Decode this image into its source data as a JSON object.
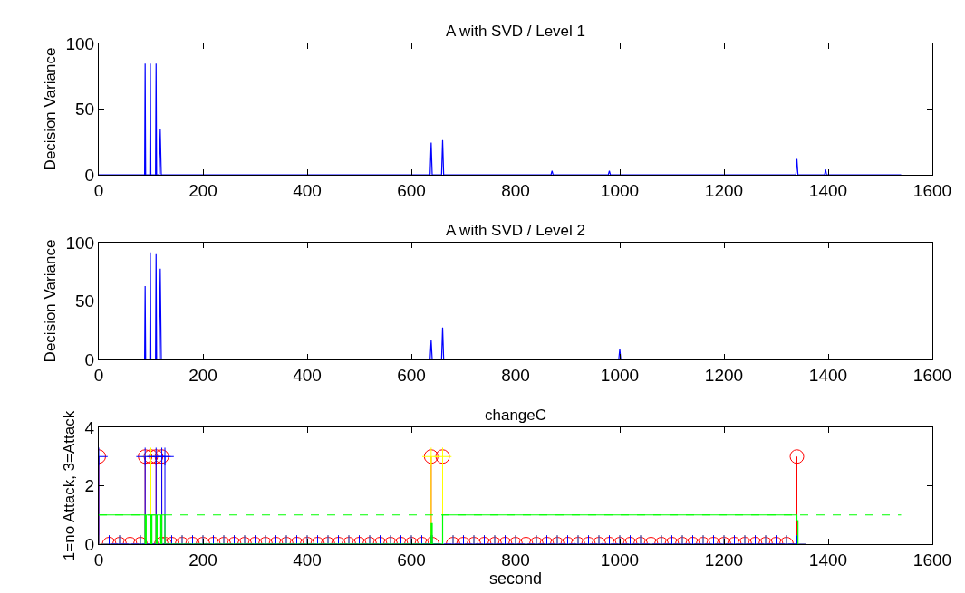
{
  "chart_data": [
    {
      "type": "line",
      "title": "A with SVD / Level 1",
      "ylabel": "Decision Variance",
      "xlim": [
        0,
        1600
      ],
      "xticks": [
        0,
        200,
        400,
        600,
        800,
        1000,
        1200,
        1400,
        1600
      ],
      "ylim": [
        0,
        100
      ],
      "yticks": [
        0,
        50,
        100
      ],
      "series": [
        {
          "color": "#0000ff",
          "x": [
            0,
            80,
            88,
            89,
            90,
            98,
            99,
            100,
            109,
            110,
            111,
            116,
            118,
            120,
            636,
            638,
            640,
            658,
            660,
            662,
            868,
            870,
            872,
            978,
            980,
            982,
            1338,
            1340,
            1342,
            1393,
            1395,
            1397,
            1540
          ],
          "values": [
            0,
            0,
            0,
            84.6,
            0,
            0,
            84.6,
            0,
            0,
            84.6,
            0,
            0,
            34.5,
            0,
            0,
            24.4,
            0,
            0,
            26.4,
            0,
            0,
            3,
            0,
            0,
            3,
            0,
            0,
            12,
            0,
            0,
            4,
            0,
            0
          ]
        }
      ]
    },
    {
      "type": "line",
      "title": "A with SVD / Level 2",
      "ylabel": "Decision Variance",
      "xlim": [
        0,
        1600
      ],
      "xticks": [
        0,
        200,
        400,
        600,
        800,
        1000,
        1200,
        1400,
        1600
      ],
      "ylim": [
        0,
        100
      ],
      "yticks": [
        0,
        50,
        100
      ],
      "series": [
        {
          "color": "#0000ff",
          "x": [
            0,
            80,
            88,
            89,
            90,
            98,
            99,
            100,
            109,
            110,
            111,
            116,
            118,
            120,
            636,
            638,
            640,
            658,
            660,
            662,
            998,
            1000,
            1002,
            1540
          ],
          "values": [
            0,
            0,
            0,
            62.8,
            0,
            0,
            91.7,
            0,
            0,
            90.2,
            0,
            0,
            77.8,
            0,
            0,
            16.5,
            0,
            0,
            27.4,
            0,
            0,
            8.8,
            0,
            0
          ]
        }
      ]
    },
    {
      "type": "lollipop",
      "title": "changeC",
      "xlabel": "second",
      "ylabel": "1=no Attack, 3=Attack",
      "xlim": [
        0,
        1600
      ],
      "xticks": [
        0,
        200,
        400,
        600,
        800,
        1000,
        1200,
        1400,
        1600
      ],
      "ylim": [
        0,
        4
      ],
      "yticks": [
        0,
        2,
        4
      ],
      "x": [
        0,
        20,
        40,
        60,
        80,
        89,
        100,
        110,
        120,
        121,
        127,
        140,
        160,
        180,
        200,
        220,
        240,
        260,
        280,
        300,
        320,
        340,
        360,
        380,
        400,
        420,
        440,
        460,
        480,
        500,
        520,
        540,
        560,
        580,
        600,
        620,
        638,
        640,
        660,
        680,
        700,
        720,
        740,
        760,
        780,
        800,
        820,
        840,
        860,
        880,
        900,
        920,
        940,
        960,
        980,
        1000,
        1020,
        1040,
        1060,
        1080,
        1100,
        1120,
        1140,
        1160,
        1180,
        1200,
        1220,
        1240,
        1260,
        1280,
        1300,
        1320,
        1340
      ],
      "series": [
        {
          "color": "#ff0000",
          "marker": "circle",
          "values": [
            3,
            0,
            0,
            0,
            0,
            3,
            3,
            3,
            0,
            3,
            0,
            0,
            0,
            0,
            0,
            0,
            0,
            0,
            0,
            0,
            0,
            0,
            0,
            0,
            0,
            0,
            0,
            0,
            0,
            0,
            0,
            0,
            0,
            0,
            0,
            0,
            3,
            0,
            3,
            0,
            0,
            0,
            0,
            0,
            0,
            0,
            0,
            0,
            0,
            0,
            0,
            0,
            0,
            0,
            0,
            0,
            0,
            0,
            0,
            0,
            0,
            0,
            0,
            0,
            0,
            0,
            0,
            0,
            0,
            0,
            0,
            0,
            3
          ]
        },
        {
          "color": "#ffff00",
          "marker": "cross",
          "values": [
            0,
            0,
            0,
            0,
            0,
            0,
            3,
            0,
            0,
            0,
            0,
            0,
            0,
            0,
            0,
            0,
            0,
            0,
            0,
            0,
            0,
            0,
            0,
            0,
            0,
            0,
            0,
            0,
            0,
            0,
            0,
            0,
            0,
            0,
            0,
            0,
            3,
            0,
            3,
            0,
            0,
            0,
            0,
            0,
            0,
            0,
            0,
            0,
            0,
            0,
            0,
            0,
            0,
            0,
            0,
            0,
            0,
            0,
            0,
            0,
            0,
            0,
            0,
            0,
            0,
            0,
            0,
            0,
            0,
            0,
            0,
            0,
            0
          ]
        },
        {
          "color": "#0000ff",
          "marker": "cross",
          "values": [
            3,
            0,
            0,
            0,
            0,
            3,
            0,
            3,
            0,
            3,
            3,
            0,
            0,
            0,
            0,
            0,
            0,
            0,
            0,
            0,
            0,
            0,
            0,
            0,
            0,
            0,
            0,
            0,
            0,
            0,
            0,
            0,
            0,
            0,
            0,
            0,
            0,
            0,
            0,
            0,
            0,
            0,
            0,
            0,
            0,
            0,
            0,
            0,
            0,
            0,
            0,
            0,
            0,
            0,
            0,
            0,
            0,
            0,
            0,
            0,
            0,
            0,
            0,
            0,
            0,
            0,
            0,
            0,
            0,
            0,
            0,
            0,
            0
          ]
        },
        {
          "type": "line",
          "color": "#00ff00",
          "line_style": "dashed",
          "marker": "none",
          "x": [
            0,
            1540
          ],
          "values": [
            1,
            1
          ]
        },
        {
          "type": "step",
          "color": "#00ff00",
          "line_style": "solid",
          "marker": "none",
          "x": [
            0,
            89,
            91,
            100,
            102,
            110,
            112,
            119,
            121,
            127,
            638,
            640,
            660,
            1340,
            1342
          ],
          "values": [
            1,
            0,
            1,
            0,
            1,
            0,
            1,
            0,
            1,
            0,
            0.7,
            0,
            1,
            0.8,
            0
          ]
        }
      ]
    }
  ]
}
